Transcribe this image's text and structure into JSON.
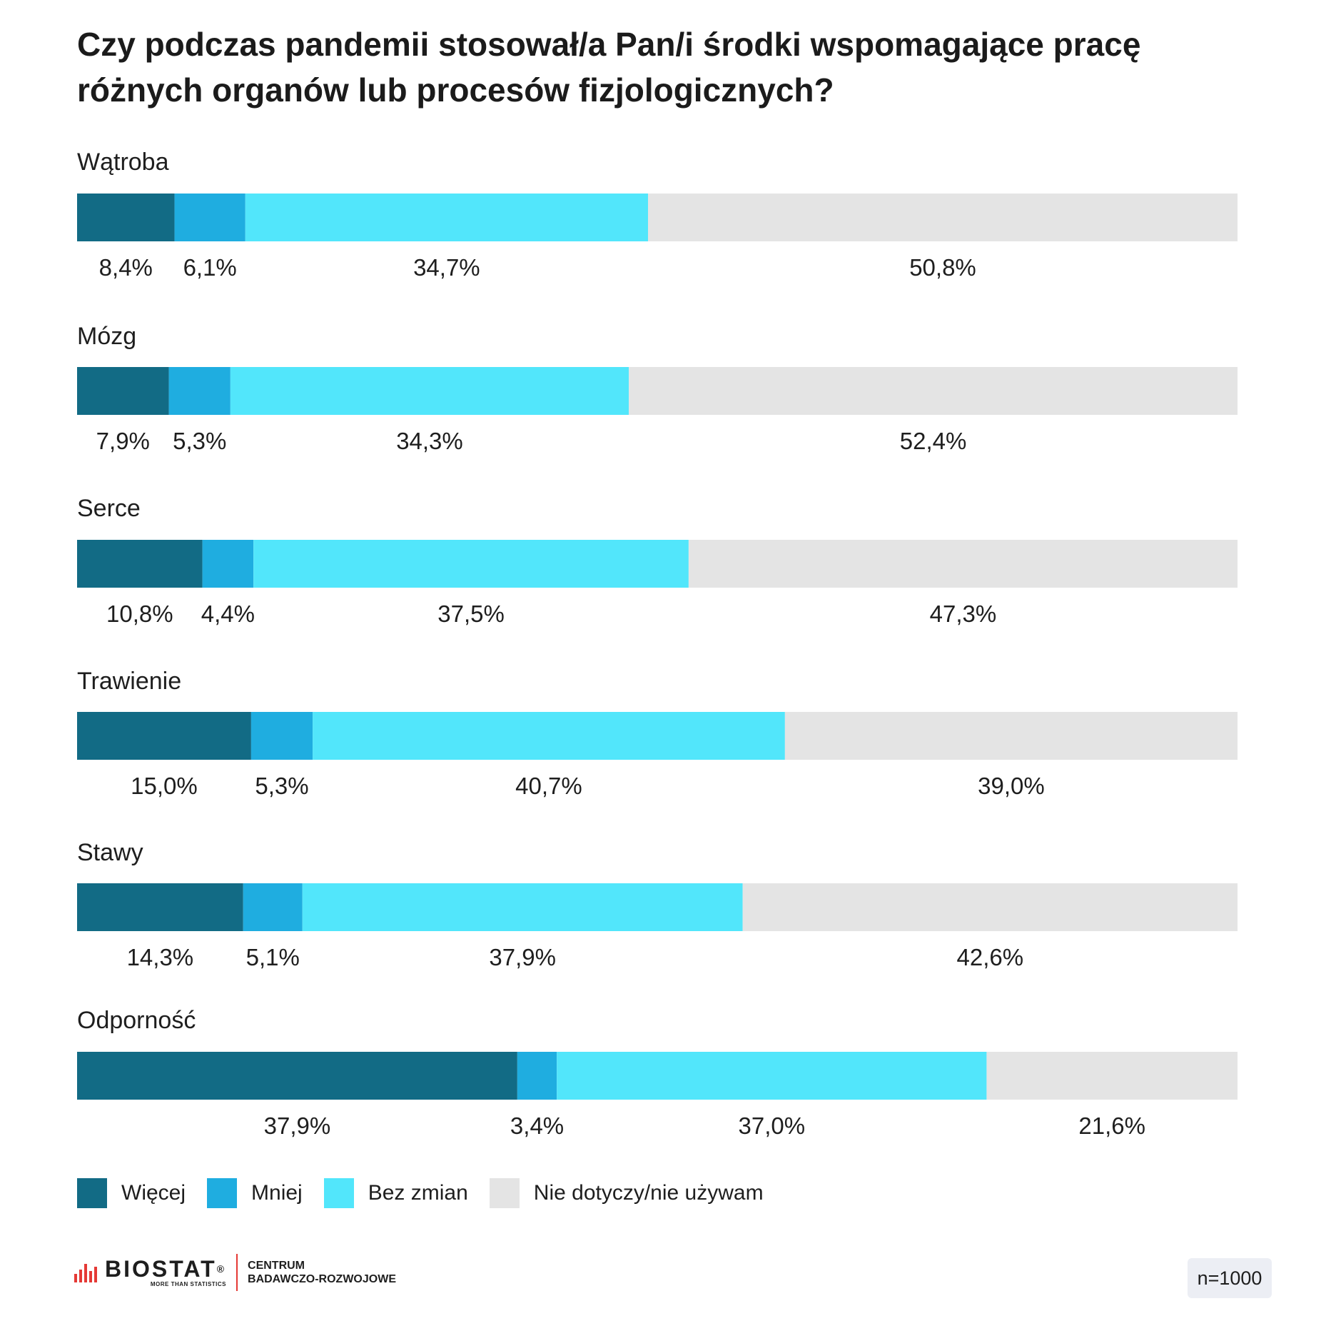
{
  "chart_data": {
    "type": "bar",
    "orientation": "horizontal",
    "stacked": true,
    "title": "Czy podczas pandemii stosował/a Pan/i środki wspomagające pracę różnych organów lub procesów fizjologicznych?",
    "categories": [
      "Wątroba",
      "Mózg",
      "Serce",
      "Trawienie",
      "Stawy",
      "Odporność"
    ],
    "series": [
      {
        "name": "Więcej",
        "color": "#126b85",
        "values": [
          8.4,
          7.9,
          10.8,
          15.0,
          14.3,
          37.9
        ],
        "labels": [
          "8,4%",
          "7,9%",
          "10,8%",
          "15,0%",
          "14,3%",
          "37,9%"
        ]
      },
      {
        "name": "Mniej",
        "color": "#1fade0",
        "values": [
          6.1,
          5.3,
          4.4,
          5.3,
          5.1,
          3.4
        ],
        "labels": [
          "6,1%",
          "5,3%",
          "4,4%",
          "5,3%",
          "5,1%",
          "3,4%"
        ]
      },
      {
        "name": "Bez zmian",
        "color": "#52e6fb",
        "values": [
          34.7,
          34.3,
          37.5,
          40.7,
          37.9,
          37.0
        ],
        "labels": [
          "34,7%",
          "34,3%",
          "37,5%",
          "40,7%",
          "37,9%",
          "37,0%"
        ]
      },
      {
        "name": "Nie dotyczy/nie używam",
        "color": "#e4e4e4",
        "values": [
          50.8,
          52.4,
          47.3,
          39.0,
          42.6,
          21.6
        ],
        "labels": [
          "50,8%",
          "52,4%",
          "47,3%",
          "39,0%",
          "42,6%",
          "21,6%"
        ]
      }
    ],
    "grid": false,
    "legend_position": "bottom-left"
  },
  "footer": {
    "logo_word": "BIOSTAT",
    "logo_reg": "®",
    "logo_tagline": "MORE THAN STATISTICS",
    "centrum_line1": "CENTRUM",
    "centrum_line2": "BADAWCZO-ROZWOJOWE",
    "sample_size": "n=1000"
  }
}
